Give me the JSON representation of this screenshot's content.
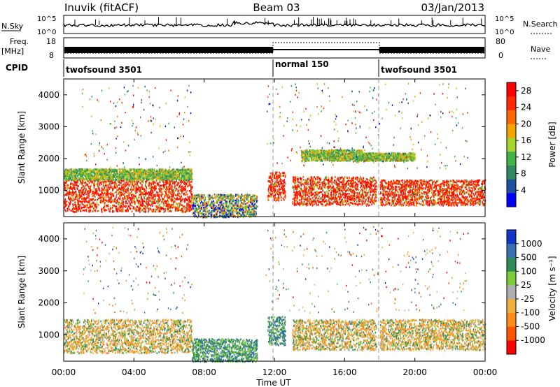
{
  "header": {
    "station": "Inuvik (fitACF)",
    "beam": "Beam 03",
    "date": "03/Jan/2013"
  },
  "strips": {
    "nsky_label": "N.Sky",
    "nsky_ticks": [
      "10^5",
      "10^0"
    ],
    "nsearch_label": "N.Search",
    "freq_label_1": "Freq.",
    "freq_label_2": "[MHz]",
    "freq_ticks": [
      "18",
      "8"
    ],
    "nave_ticks": [
      "80",
      "0"
    ],
    "nave_label": "Nave",
    "cpid_label": "CPID",
    "cpid_segments": [
      {
        "label": "twofsound 3501",
        "start_hour": 0
      },
      {
        "label": "normal 150",
        "start_hour": 12
      },
      {
        "label": "twofsound 3501",
        "start_hour": 18
      }
    ]
  },
  "colors": {
    "power_scale": [
      "#0000ff",
      "#1f4fa0",
      "#2f8b5f",
      "#44b24a",
      "#a6d42c",
      "#f2a400",
      "#ff6a00",
      "#ff2a00",
      "#ff0000"
    ],
    "velocity_scale": [
      "#ff0000",
      "#ff5500",
      "#ff8c1a",
      "#f0b040",
      "#b0b0b0",
      "#7ccc3c",
      "#2e8b57",
      "#3a6fb0",
      "#1434c8"
    ],
    "ground_scatter": "#b0b0b0"
  },
  "chart_data": [
    {
      "type": "heatmap",
      "name": "power",
      "ylabel": "Slant Range [km]",
      "xlabel": "",
      "xlim_hours": [
        0,
        24
      ],
      "ylim": [
        180,
        4500
      ],
      "yticks": [
        1000,
        2000,
        3000,
        4000
      ],
      "colorbar": {
        "label": "Power [dB]",
        "ticks": [
          4,
          8,
          12,
          16,
          20,
          24,
          28
        ],
        "range": [
          0,
          30
        ]
      },
      "series": [
        {
          "t0": 0.0,
          "t1": 7.3,
          "r0": 350,
          "r1": 1350,
          "level": "strong"
        },
        {
          "t0": 0.0,
          "t1": 7.3,
          "r0": 1350,
          "r1": 1700,
          "level": "medium"
        },
        {
          "t0": 7.3,
          "t1": 11.0,
          "r0": 180,
          "r1": 900,
          "level": "weak"
        },
        {
          "t0": 11.6,
          "t1": 12.6,
          "r0": 700,
          "r1": 1600,
          "level": "strong"
        },
        {
          "t0": 13.0,
          "t1": 17.8,
          "r0": 550,
          "r1": 1450,
          "level": "strong"
        },
        {
          "t0": 18.0,
          "t1": 24.0,
          "r0": 550,
          "r1": 1350,
          "level": "strong"
        },
        {
          "t0": 13.5,
          "t1": 17.0,
          "r0": 1950,
          "r1": 2300,
          "level": "medium"
        },
        {
          "t0": 17.0,
          "t1": 20.0,
          "r0": 1950,
          "r1": 2200,
          "level": "medium"
        }
      ]
    },
    {
      "type": "heatmap",
      "name": "velocity",
      "ylabel": "Slant Range [km]",
      "xlabel": "Time UT",
      "x_ticks": [
        "00:00",
        "04:00",
        "08:00",
        "12:00",
        "16:00",
        "20:00",
        "00:00"
      ],
      "xlim_hours": [
        0,
        24
      ],
      "ylim": [
        180,
        4500
      ],
      "yticks": [
        1000,
        2000,
        3000,
        4000
      ],
      "colorbar": {
        "label": "Velocity [m s⁻¹]",
        "ticks": [
          1000,
          500,
          100,
          25,
          -25,
          -100,
          -500,
          -1000
        ],
        "range": [
          -1000,
          1000
        ]
      },
      "series": [
        {
          "t0": 0.0,
          "t1": 7.3,
          "r0": 450,
          "r1": 1500,
          "level": "negative"
        },
        {
          "t0": 7.3,
          "t1": 11.0,
          "r0": 180,
          "r1": 900,
          "level": "positive"
        },
        {
          "t0": 11.6,
          "t1": 12.6,
          "r0": 700,
          "r1": 1600,
          "level": "positive"
        },
        {
          "t0": 13.0,
          "t1": 17.8,
          "r0": 550,
          "r1": 1500,
          "level": "negative"
        },
        {
          "t0": 18.0,
          "t1": 24.0,
          "r0": 550,
          "r1": 1500,
          "level": "negative"
        }
      ]
    }
  ]
}
